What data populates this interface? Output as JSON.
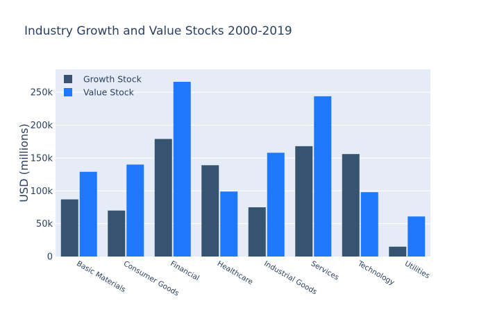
{
  "chart_data": {
    "type": "bar",
    "title": "Industry Growth and Value Stocks 2000-2019",
    "xlabel": "",
    "ylabel": "USD (millions)",
    "categories": [
      "Basic Materials",
      "Consumer Goods",
      "Financial",
      "Healthcare",
      "Industrial Goods",
      "Services",
      "Technology",
      "Utilities"
    ],
    "series": [
      {
        "name": "Growth Stock",
        "color": "#36536f",
        "values": [
          87000,
          70000,
          179000,
          139000,
          75000,
          168000,
          156000,
          15000
        ]
      },
      {
        "name": "Value Stock",
        "color": "#1f77fb",
        "values": [
          129000,
          140000,
          266000,
          99000,
          158000,
          244000,
          98000,
          61000
        ]
      }
    ],
    "ylim": [
      0,
      285000
    ],
    "yticks": [
      0,
      50000,
      100000,
      150000,
      200000,
      250000
    ],
    "ytick_labels": [
      "0",
      "50k",
      "100k",
      "150k",
      "200k",
      "250k"
    ],
    "grid": true,
    "legend_position": "top-left",
    "plot_bg": "#e5ecf6"
  }
}
